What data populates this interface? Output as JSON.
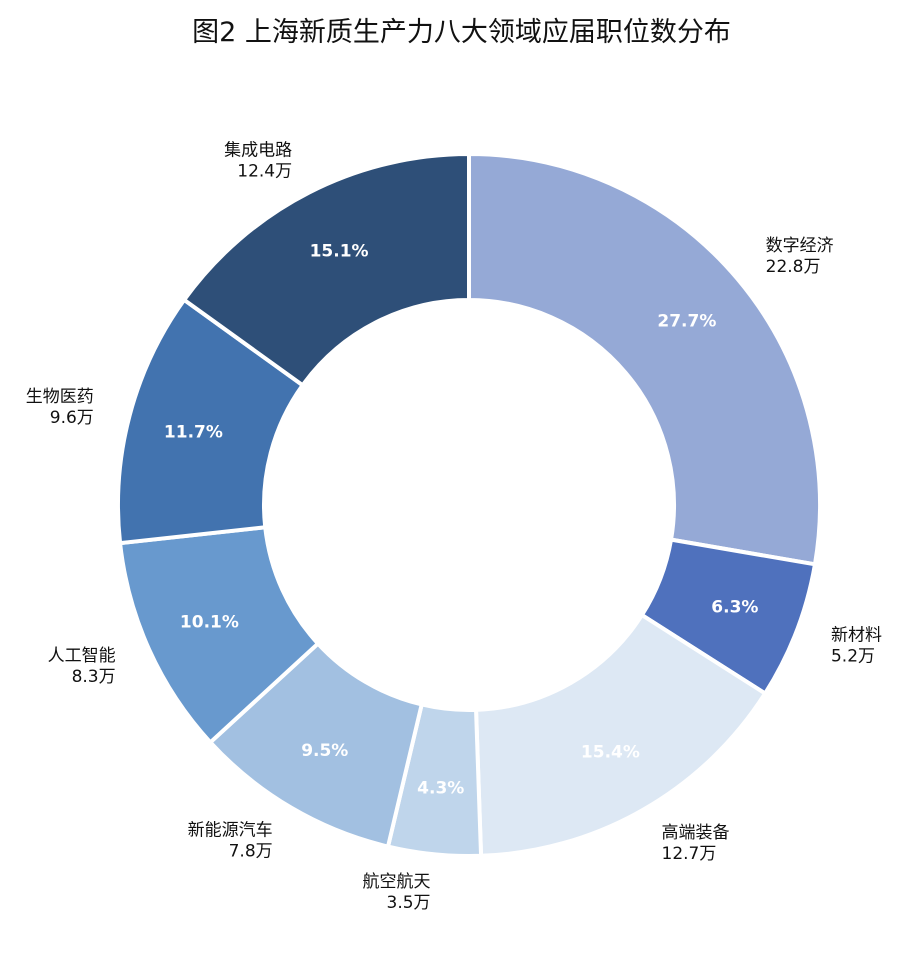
{
  "chart_data": {
    "type": "pie",
    "title": "图2 上海新质生产力八大领域应届职位数分布",
    "donut": true,
    "unit": "万",
    "slices": [
      {
        "name": "数字经济",
        "value": 22.8,
        "value_label": "22.8万",
        "percent_label": "27.7%",
        "color": "#95a9d6",
        "pct_text_color": "#ffffff"
      },
      {
        "name": "新材料",
        "value": 5.2,
        "value_label": "5.2万",
        "percent_label": "6.3%",
        "color": "#4f71bd",
        "pct_text_color": "#ffffff"
      },
      {
        "name": "高端装备",
        "value": 12.7,
        "value_label": "12.7万",
        "percent_label": "15.4%",
        "color": "#dde8f4",
        "pct_text_color": "#ffffff"
      },
      {
        "name": "航空航天",
        "value": 3.5,
        "value_label": "3.5万",
        "percent_label": "4.3%",
        "color": "#bfd5eb",
        "pct_text_color": "#ffffff"
      },
      {
        "name": "新能源汽车",
        "value": 7.8,
        "value_label": "7.8万",
        "percent_label": "9.5%",
        "color": "#a2c0e1",
        "pct_text_color": "#ffffff"
      },
      {
        "name": "人工智能",
        "value": 8.3,
        "value_label": "8.3万",
        "percent_label": "10.1%",
        "color": "#6899ce",
        "pct_text_color": "#ffffff"
      },
      {
        "name": "生物医药",
        "value": 9.6,
        "value_label": "9.6万",
        "percent_label": "11.7%",
        "color": "#4273af",
        "pct_text_color": "#ffffff"
      },
      {
        "name": "集成电路",
        "value": 12.4,
        "value_label": "12.4万",
        "percent_label": "15.1%",
        "color": "#2e4f78",
        "pct_text_color": "#ffffff"
      }
    ]
  }
}
